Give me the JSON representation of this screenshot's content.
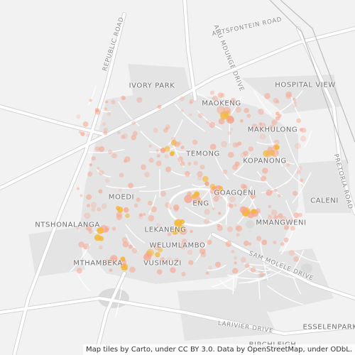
{
  "map": {
    "attribution": "Map tiles by Carto, under CC BY 3.0. Data by OpenStreetMap, under ODbL.",
    "colors": {
      "background": "#f2f2f2",
      "road": "#ffffff",
      "road_casing": "#d6d6d6",
      "block": "#e3e3e3",
      "park": "#dcdcdc",
      "heat_low": "#f7a58e",
      "heat_high": "#f5b52e"
    },
    "areas": [
      "IVORY PARK",
      "MAOKENG",
      "MAKHULONG",
      "HOSPITAL VIEW",
      "TEMONG",
      "KOPANONG",
      "MOEDI",
      "GOAGQENI",
      "ENG",
      "CALENI",
      "NTSHONALANGA",
      "MMANGWENI",
      "LEKANENG",
      "WELUMLAMBO",
      "MTHAMBEKA",
      "VUSIMUZI",
      "ESSELENPARK",
      "BIRCHLEIGH"
    ],
    "roads": [
      "REPUBLIC ROAD",
      "ANTSFONTEIN ROAD",
      "ABU MDUNGE DRIVE",
      "PRETORIA ROAD",
      "SAM MOLELE DRIVE",
      "LARIVIER DRIVE"
    ]
  }
}
